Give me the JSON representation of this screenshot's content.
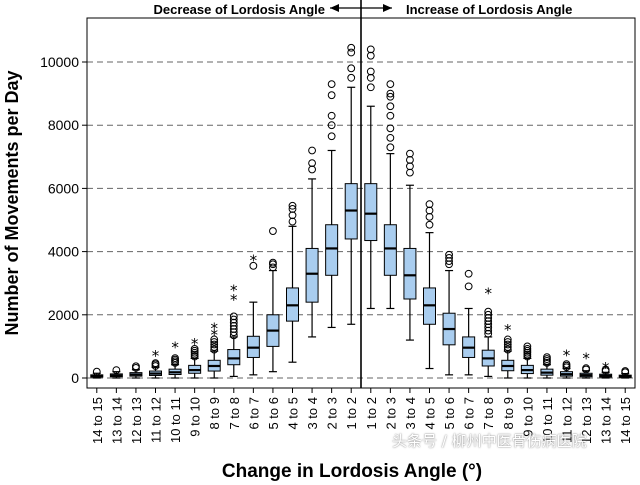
{
  "chart_data": {
    "type": "box",
    "title": "",
    "xlabel": "Change in Lordosis Angle (°)",
    "ylabel": "Number of Movements per Day",
    "ylim": [
      0,
      11000
    ],
    "yticks": [
      0,
      2000,
      4000,
      6000,
      8000,
      10000
    ],
    "grid": "horizontal dashed",
    "top_labels": {
      "left": "Decrease of Lordosis Angle",
      "right": "Increase of Lordosis Angle"
    },
    "categories": [
      "14 to 15",
      "13 to 14",
      "12 to 13",
      "11 to 12",
      "10 to 11",
      "9 to 10",
      "8 to 9",
      "7 to 8",
      "6 to 7",
      "5 to 6",
      "4 to 5",
      "3 to 4",
      "2 to 3",
      "1 to 2",
      "1 to 2",
      "2 to 3",
      "3 to 4",
      "4 to 5",
      "5 to 6",
      "6 to 7",
      "7 to 8",
      "8 to 9",
      "9 to 10",
      "10 to 11",
      "11 to 12",
      "12 to 13",
      "13 to 14",
      "14 to 15"
    ],
    "boxes": [
      {
        "min": 0,
        "q1": 30,
        "median": 60,
        "q3": 100,
        "max": 150,
        "outliers_circle": [
          200
        ],
        "outliers_star": []
      },
      {
        "min": 0,
        "q1": 40,
        "median": 80,
        "q3": 130,
        "max": 200,
        "outliers_circle": [
          250
        ],
        "outliers_star": []
      },
      {
        "min": 0,
        "q1": 60,
        "median": 110,
        "q3": 170,
        "max": 260,
        "outliers_circle": [
          320,
          370
        ],
        "outliers_star": []
      },
      {
        "min": 0,
        "q1": 80,
        "median": 140,
        "q3": 220,
        "max": 340,
        "outliers_circle": [
          380,
          430,
          470
        ],
        "outliers_star": [
          720
        ]
      },
      {
        "min": 0,
        "q1": 110,
        "median": 180,
        "q3": 280,
        "max": 420,
        "outliers_circle": [
          480,
          530,
          580,
          630
        ],
        "outliers_star": [
          1000
        ]
      },
      {
        "min": 0,
        "q1": 150,
        "median": 250,
        "q3": 400,
        "max": 620,
        "outliers_circle": [
          680,
          740,
          800,
          860,
          920
        ],
        "outliers_star": [
          1100
        ]
      },
      {
        "min": 0,
        "q1": 220,
        "median": 380,
        "q3": 560,
        "max": 850,
        "outliers_circle": [
          900,
          980,
          1060,
          1140,
          1220
        ],
        "outliers_star": [
          1400,
          1600
        ]
      },
      {
        "min": 50,
        "q1": 420,
        "median": 620,
        "q3": 900,
        "max": 1300,
        "outliers_circle": [
          1350,
          1450,
          1550,
          1650,
          1750,
          1850,
          1950
        ],
        "outliers_star": [
          2500,
          2800
        ]
      },
      {
        "min": 100,
        "q1": 650,
        "median": 960,
        "q3": 1320,
        "max": 2400,
        "outliers_circle": [
          3550
        ],
        "outliers_star": [
          3750
        ]
      },
      {
        "min": 200,
        "q1": 1000,
        "median": 1500,
        "q3": 2000,
        "max": 3400,
        "outliers_circle": [
          3500,
          3600,
          3650,
          4650
        ],
        "outliers_star": []
      },
      {
        "min": 500,
        "q1": 1800,
        "median": 2300,
        "q3": 2850,
        "max": 4800,
        "outliers_circle": [
          4950,
          5150,
          5350,
          5450
        ],
        "outliers_star": []
      },
      {
        "min": 1300,
        "q1": 2400,
        "median": 3300,
        "q3": 4100,
        "max": 6300,
        "outliers_circle": [
          6600,
          6800,
          7200
        ],
        "outliers_star": []
      },
      {
        "min": 1600,
        "q1": 3250,
        "median": 4100,
        "q3": 4850,
        "max": 7200,
        "outliers_circle": [
          7650,
          8000,
          8300,
          8950,
          9300
        ],
        "outliers_star": []
      },
      {
        "min": 1700,
        "q1": 4400,
        "median": 5300,
        "q3": 6150,
        "max": 9200,
        "outliers_circle": [
          9500,
          9800,
          10300,
          10450
        ],
        "outliers_star": []
      },
      {
        "min": 2200,
        "q1": 4350,
        "median": 5200,
        "q3": 6150,
        "max": 8600,
        "outliers_circle": [
          9200,
          9500,
          9700,
          10200,
          10400
        ],
        "outliers_star": []
      },
      {
        "min": 2200,
        "q1": 3250,
        "median": 4100,
        "q3": 4850,
        "max": 7100,
        "outliers_circle": [
          7300,
          7600,
          7900,
          8300,
          8600,
          8900,
          9000,
          9300
        ],
        "outliers_star": []
      },
      {
        "min": 1200,
        "q1": 2500,
        "median": 3250,
        "q3": 4100,
        "max": 6100,
        "outliers_circle": [
          6500,
          6700,
          6900,
          7100
        ],
        "outliers_star": []
      },
      {
        "min": 300,
        "q1": 1700,
        "median": 2300,
        "q3": 2850,
        "max": 4600,
        "outliers_circle": [
          4850,
          5100,
          5300,
          5500
        ],
        "outliers_star": []
      },
      {
        "min": 100,
        "q1": 1050,
        "median": 1550,
        "q3": 2050,
        "max": 3400,
        "outliers_circle": [
          3600,
          3700,
          3800,
          3900
        ],
        "outliers_star": []
      },
      {
        "min": 100,
        "q1": 650,
        "median": 960,
        "q3": 1300,
        "max": 2200,
        "outliers_circle": [
          2900,
          3300
        ],
        "outliers_star": []
      },
      {
        "min": 50,
        "q1": 380,
        "median": 620,
        "q3": 880,
        "max": 1300,
        "outliers_circle": [
          1400,
          1500,
          1600,
          1700,
          1800,
          1900,
          2000,
          2100
        ],
        "outliers_star": [
          2700
        ]
      },
      {
        "min": 0,
        "q1": 230,
        "median": 380,
        "q3": 560,
        "max": 850,
        "outliers_circle": [
          900,
          980,
          1060,
          1140,
          1220
        ],
        "outliers_star": [
          1550
        ]
      },
      {
        "min": 0,
        "q1": 140,
        "median": 250,
        "q3": 400,
        "max": 620,
        "outliers_circle": [
          680,
          740,
          800,
          860,
          920,
          1000
        ],
        "outliers_star": []
      },
      {
        "min": 0,
        "q1": 90,
        "median": 170,
        "q3": 280,
        "max": 420,
        "outliers_circle": [
          480,
          540,
          600,
          660
        ],
        "outliers_star": []
      },
      {
        "min": 0,
        "q1": 60,
        "median": 120,
        "q3": 200,
        "max": 300,
        "outliers_circle": [
          340,
          390,
          440
        ],
        "outliers_star": [
          750
        ]
      },
      {
        "min": 0,
        "q1": 40,
        "median": 90,
        "q3": 150,
        "max": 230,
        "outliers_circle": [
          270,
          310
        ],
        "outliers_star": [
          650
        ]
      },
      {
        "min": 0,
        "q1": 30,
        "median": 70,
        "q3": 120,
        "max": 180,
        "outliers_circle": [
          220,
          260
        ],
        "outliers_star": [
          350
        ]
      },
      {
        "min": 0,
        "q1": 20,
        "median": 50,
        "q3": 90,
        "max": 140,
        "outliers_circle": [
          180,
          220
        ],
        "outliers_star": []
      }
    ]
  },
  "watermark": "头条号 / 柳州中医骨伤病医院"
}
